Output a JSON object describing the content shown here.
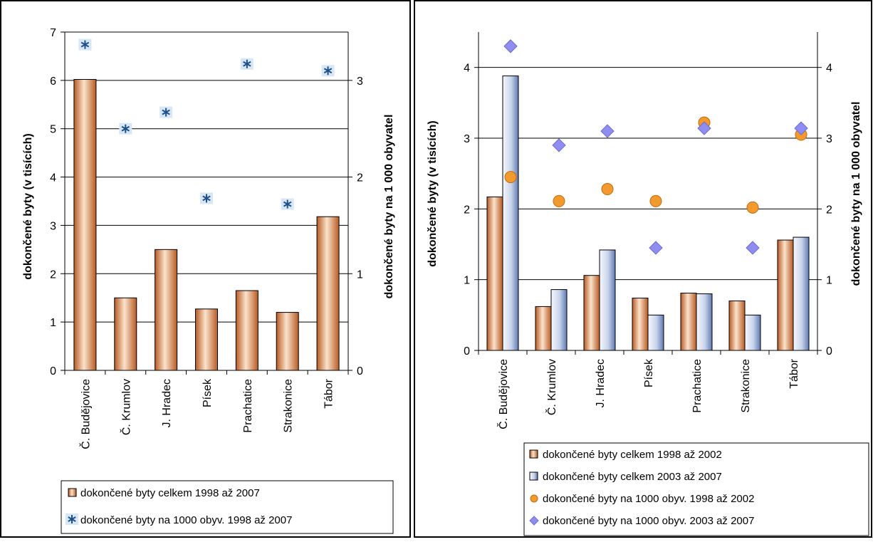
{
  "chart_data": [
    {
      "type": "bar",
      "categories": [
        "Č. Budějovice",
        "Č. Krumlov",
        "J. Hradec",
        "Písek",
        "Prachatice",
        "Strakonice",
        "Tábor"
      ],
      "series": [
        {
          "name": "dokončené byty celkem 1998 až 2007",
          "kind": "bar",
          "axis": "left",
          "color": "#c8692a",
          "values": [
            6.02,
            1.5,
            2.5,
            1.27,
            1.65,
            1.2,
            3.18
          ]
        },
        {
          "name": "dokončené byty na 1000 obyv. 1998 až 2007",
          "kind": "marker",
          "marker": "asterisk",
          "axis": "right",
          "color": "#1c4f8c",
          "values": [
            3.37,
            2.5,
            2.67,
            1.78,
            3.17,
            1.72,
            3.1
          ]
        }
      ],
      "ylabel": "dokončené byty (v tisících)",
      "ylim": [
        0,
        7
      ],
      "yticks": [
        "0",
        "1",
        "2",
        "3",
        "4",
        "5",
        "6",
        "7"
      ],
      "y2label": "dokončené byty na 1 000 obyvatel",
      "y2lim": [
        0,
        3.5
      ],
      "y2ticks": [
        "0",
        "1",
        "2",
        "3"
      ],
      "grid": true,
      "legend": "bottom"
    },
    {
      "type": "bar",
      "categories": [
        "Č. Budějovice",
        "Č. Krumlov",
        "J. Hradec",
        "Písek",
        "Prachatice",
        "Strakonice",
        "Tábor"
      ],
      "series": [
        {
          "name": "dokončené byty celkem 1998 až 2002",
          "kind": "bar",
          "axis": "left",
          "color": "#c8692a",
          "values": [
            2.17,
            0.62,
            1.06,
            0.74,
            0.81,
            0.7,
            1.56
          ]
        },
        {
          "name": "dokončené byty celkem 2003 až 2007",
          "kind": "bar",
          "axis": "left",
          "color": "#9ab0d6",
          "values": [
            3.88,
            0.86,
            1.42,
            0.5,
            0.8,
            0.5,
            1.6
          ]
        },
        {
          "name": "dokončené byty na 1000 obyv. 1998 až 2002",
          "kind": "marker",
          "marker": "circle",
          "axis": "right",
          "color": "#f39a2e",
          "values": [
            2.45,
            2.11,
            2.28,
            2.11,
            3.22,
            2.02,
            3.05
          ]
        },
        {
          "name": "dokončené byty na 1000 obyv. 2003 až 2007",
          "kind": "marker",
          "marker": "diamond",
          "axis": "right",
          "color": "#8f8ef0",
          "values": [
            4.3,
            2.9,
            3.1,
            1.45,
            3.14,
            1.45,
            3.14
          ]
        }
      ],
      "ylabel": "dokončené byty (v tisících)",
      "ylim": [
        0,
        4.5
      ],
      "yticks": [
        "0",
        "1",
        "2",
        "3",
        "4"
      ],
      "y2label": "dokončené byty na 1 000 obyvatel",
      "y2lim": [
        0,
        4.5
      ],
      "y2ticks": [
        "0",
        "1",
        "2",
        "3",
        "4"
      ],
      "grid": true,
      "legend": "bottom"
    }
  ]
}
